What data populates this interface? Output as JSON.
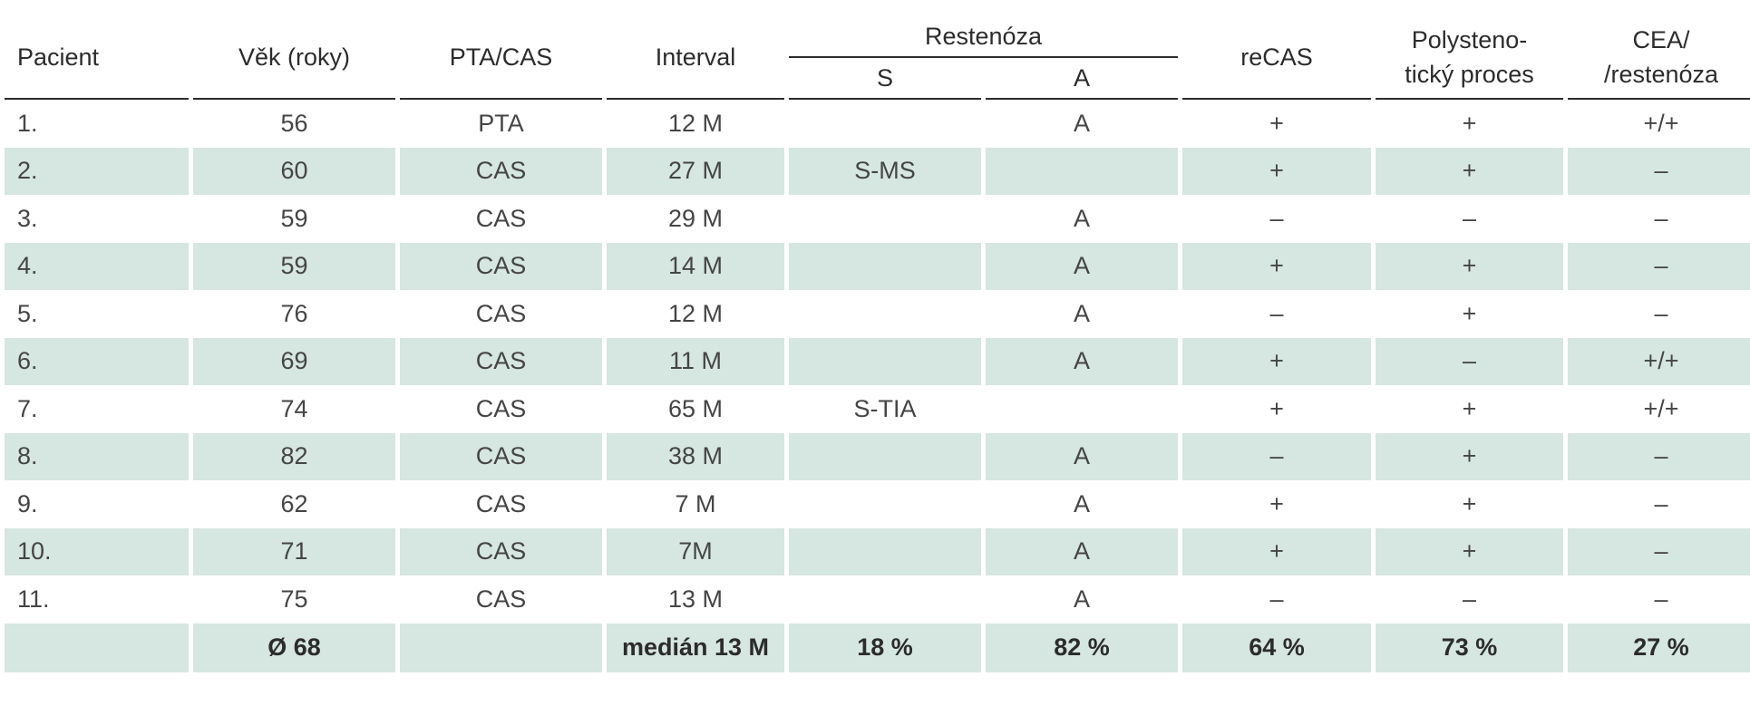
{
  "header": {
    "pacient": "Pacient",
    "vek": "Věk (roky)",
    "pta_cas": "PTA/CAS",
    "interval": "Interval",
    "restenoza": "Restenóza",
    "s": "S",
    "a": "A",
    "recas": "reCAS",
    "poly_line1": "Polysteno-",
    "poly_line2": "tický proces",
    "cea_line1": "CEA/",
    "cea_line2": "/restenóza"
  },
  "rows": [
    {
      "p": "1.",
      "vek": "56",
      "typ": "PTA",
      "interval": "12 M",
      "s": "",
      "a": "A",
      "recas": "+",
      "poly": "+",
      "cea": "+/+"
    },
    {
      "p": "2.",
      "vek": "60",
      "typ": "CAS",
      "interval": "27 M",
      "s": "S-MS",
      "a": "",
      "recas": "+",
      "poly": "+",
      "cea": "–"
    },
    {
      "p": "3.",
      "vek": "59",
      "typ": "CAS",
      "interval": "29 M",
      "s": "",
      "a": "A",
      "recas": "–",
      "poly": "–",
      "cea": "–"
    },
    {
      "p": "4.",
      "vek": "59",
      "typ": "CAS",
      "interval": "14 M",
      "s": "",
      "a": "A",
      "recas": "+",
      "poly": "+",
      "cea": "–"
    },
    {
      "p": "5.",
      "vek": "76",
      "typ": "CAS",
      "interval": "12 M",
      "s": "",
      "a": "A",
      "recas": "–",
      "poly": "+",
      "cea": "–"
    },
    {
      "p": "6.",
      "vek": "69",
      "typ": "CAS",
      "interval": "11 M",
      "s": "",
      "a": "A",
      "recas": "+",
      "poly": "–",
      "cea": "+/+"
    },
    {
      "p": "7.",
      "vek": "74",
      "typ": "CAS",
      "interval": "65 M",
      "s": "S-TIA",
      "a": "",
      "recas": "+",
      "poly": "+",
      "cea": "+/+"
    },
    {
      "p": "8.",
      "vek": "82",
      "typ": "CAS",
      "interval": "38 M",
      "s": "",
      "a": "A",
      "recas": "–",
      "poly": "+",
      "cea": "–"
    },
    {
      "p": "9.",
      "vek": "62",
      "typ": "CAS",
      "interval": "7 M",
      "s": "",
      "a": "A",
      "recas": "+",
      "poly": "+",
      "cea": "–"
    },
    {
      "p": "10.",
      "vek": "71",
      "typ": "CAS",
      "interval": "7M",
      "s": "",
      "a": "A",
      "recas": "+",
      "poly": "+",
      "cea": "–"
    },
    {
      "p": "11.",
      "vek": "75",
      "typ": "CAS",
      "interval": "13 M",
      "s": "",
      "a": "A",
      "recas": "–",
      "poly": "–",
      "cea": "–"
    }
  ],
  "total": {
    "p": "",
    "vek": "Ø 68",
    "typ": "",
    "interval": "medián 13 M",
    "s": "18 %",
    "a": "82 %",
    "recas": "64 %",
    "poly": "73 %",
    "cea": "27 %"
  }
}
